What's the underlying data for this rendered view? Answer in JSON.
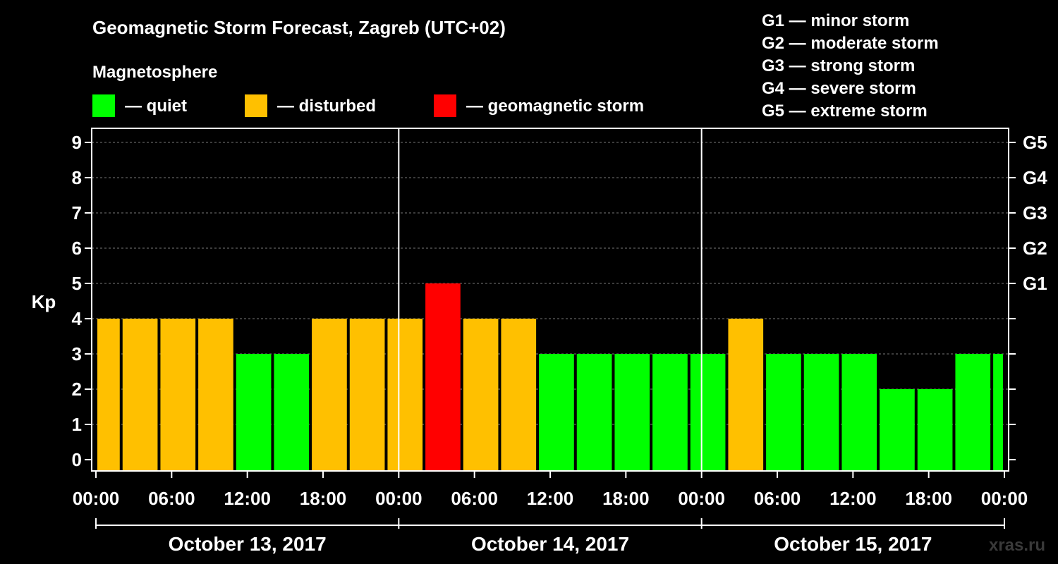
{
  "chart_data": {
    "type": "bar",
    "title": "Geomagnetic Storm Forecast, Zagreb (UTC+02)",
    "legend_title": "Magnetosphere",
    "legend": [
      {
        "key": "quiet",
        "label": "— quiet",
        "color": "#00ff00"
      },
      {
        "key": "disturbed",
        "label": "— disturbed",
        "color": "#ffc000"
      },
      {
        "key": "storm",
        "label": "— geomagnetic storm",
        "color": "#ff0000"
      }
    ],
    "g_scale_legend": [
      "G1 — minor storm",
      "G2 — moderate storm",
      "G3 — strong storm",
      "G4 — severe storm",
      "G5 — extreme storm"
    ],
    "ylabel": "Kp",
    "ylim": [
      0,
      9
    ],
    "y_ticks": [
      0,
      1,
      2,
      3,
      4,
      5,
      6,
      7,
      8,
      9
    ],
    "right_ticks": [
      {
        "value": 5,
        "label": "G1"
      },
      {
        "value": 6,
        "label": "G2"
      },
      {
        "value": 7,
        "label": "G3"
      },
      {
        "value": 8,
        "label": "G4"
      },
      {
        "value": 9,
        "label": "G5"
      }
    ],
    "x_range_hours": [
      0,
      72
    ],
    "x_ticks": [
      {
        "hour": 0,
        "label": "00:00"
      },
      {
        "hour": 6,
        "label": "06:00"
      },
      {
        "hour": 12,
        "label": "12:00"
      },
      {
        "hour": 18,
        "label": "18:00"
      },
      {
        "hour": 24,
        "label": "00:00"
      },
      {
        "hour": 30,
        "label": "06:00"
      },
      {
        "hour": 36,
        "label": "12:00"
      },
      {
        "hour": 42,
        "label": "18:00"
      },
      {
        "hour": 48,
        "label": "00:00"
      },
      {
        "hour": 54,
        "label": "06:00"
      },
      {
        "hour": 60,
        "label": "12:00"
      },
      {
        "hour": 66,
        "label": "18:00"
      },
      {
        "hour": 72,
        "label": "00:00"
      }
    ],
    "days": [
      {
        "label": "October 13, 2017",
        "start_hour": 0,
        "end_hour": 24
      },
      {
        "label": "October 14, 2017",
        "start_hour": 24,
        "end_hour": 48
      },
      {
        "label": "October 15, 2017",
        "start_hour": 48,
        "end_hour": 72
      }
    ],
    "grid": true,
    "bars": [
      {
        "start_hour": 0,
        "end_hour": 2,
        "kp": 4,
        "level": "disturbed"
      },
      {
        "start_hour": 2,
        "end_hour": 5,
        "kp": 4,
        "level": "disturbed"
      },
      {
        "start_hour": 5,
        "end_hour": 8,
        "kp": 4,
        "level": "disturbed"
      },
      {
        "start_hour": 8,
        "end_hour": 11,
        "kp": 4,
        "level": "disturbed"
      },
      {
        "start_hour": 11,
        "end_hour": 14,
        "kp": 3,
        "level": "quiet"
      },
      {
        "start_hour": 14,
        "end_hour": 17,
        "kp": 3,
        "level": "quiet"
      },
      {
        "start_hour": 17,
        "end_hour": 20,
        "kp": 4,
        "level": "disturbed"
      },
      {
        "start_hour": 20,
        "end_hour": 23,
        "kp": 4,
        "level": "disturbed"
      },
      {
        "start_hour": 23,
        "end_hour": 26,
        "kp": 4,
        "level": "disturbed"
      },
      {
        "start_hour": 26,
        "end_hour": 29,
        "kp": 5,
        "level": "storm"
      },
      {
        "start_hour": 29,
        "end_hour": 32,
        "kp": 4,
        "level": "disturbed"
      },
      {
        "start_hour": 32,
        "end_hour": 35,
        "kp": 4,
        "level": "disturbed"
      },
      {
        "start_hour": 35,
        "end_hour": 38,
        "kp": 3,
        "level": "quiet"
      },
      {
        "start_hour": 38,
        "end_hour": 41,
        "kp": 3,
        "level": "quiet"
      },
      {
        "start_hour": 41,
        "end_hour": 44,
        "kp": 3,
        "level": "quiet"
      },
      {
        "start_hour": 44,
        "end_hour": 47,
        "kp": 3,
        "level": "quiet"
      },
      {
        "start_hour": 47,
        "end_hour": 50,
        "kp": 3,
        "level": "quiet"
      },
      {
        "start_hour": 50,
        "end_hour": 53,
        "kp": 4,
        "level": "disturbed"
      },
      {
        "start_hour": 53,
        "end_hour": 56,
        "kp": 3,
        "level": "quiet"
      },
      {
        "start_hour": 56,
        "end_hour": 59,
        "kp": 3,
        "level": "quiet"
      },
      {
        "start_hour": 59,
        "end_hour": 62,
        "kp": 3,
        "level": "quiet"
      },
      {
        "start_hour": 62,
        "end_hour": 65,
        "kp": 2,
        "level": "quiet"
      },
      {
        "start_hour": 65,
        "end_hour": 68,
        "kp": 2,
        "level": "quiet"
      },
      {
        "start_hour": 68,
        "end_hour": 71,
        "kp": 3,
        "level": "quiet"
      },
      {
        "start_hour": 71,
        "end_hour": 72,
        "kp": 3,
        "level": "quiet"
      }
    ]
  },
  "watermark": "xras.ru"
}
